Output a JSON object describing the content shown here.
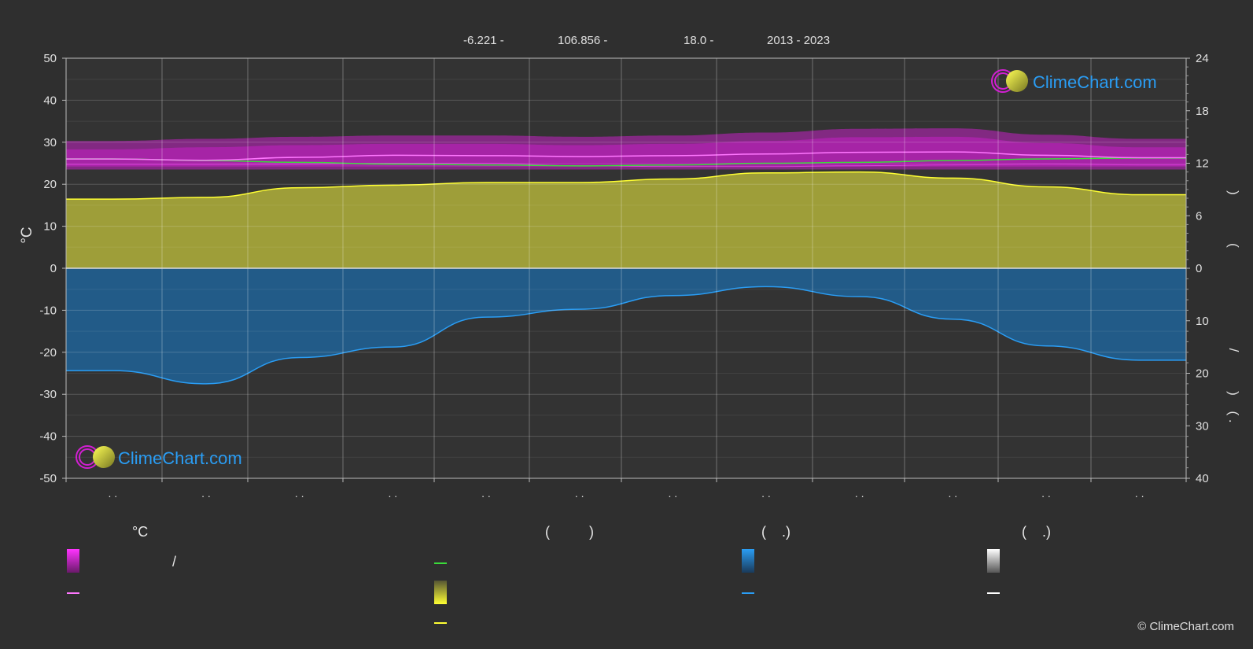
{
  "header": {
    "lat": "-6.221 -",
    "lon": "106.856 -",
    "elev": "18.0 -",
    "years": "2013 - 2023"
  },
  "brand": {
    "name": "ClimeChart.com",
    "copyright": "© ClimeChart.com",
    "color": "#2a9df4"
  },
  "legend": {
    "temp_header": "°C",
    "sun_header": "(          )",
    "rain_header": "(    .)",
    "snow_header": "(    .)",
    "slash": "/"
  },
  "colors": {
    "background": "#2f2f2f",
    "temp_band": "#d21fd2",
    "mean_temp": "#ff77ff",
    "daylight": "#3adb3a",
    "sunshine_fill": "#b6b63a",
    "sunshine_line": "#ffff33",
    "rain_fill": "#1e6aa6",
    "rain_line": "#2a9df4",
    "snow_line": "#ffffff"
  },
  "chart_data": {
    "type": "area",
    "months": 12,
    "y_left": {
      "label": "°C",
      "ticks": [
        50,
        40,
        30,
        20,
        10,
        0,
        -10,
        -20,
        -30,
        -40,
        -50
      ],
      "range": [
        -50,
        50
      ]
    },
    "y_right_top": {
      "ticks": [
        24,
        18,
        12,
        6,
        0
      ],
      "range": [
        0,
        24
      ]
    },
    "y_right_bottom": {
      "ticks": [
        0,
        10,
        20,
        30,
        40
      ],
      "range": [
        0,
        40
      ]
    },
    "month_tick_labels": [
      ". .",
      ". .",
      ". .",
      ". .",
      ". .",
      ". .",
      ". .",
      ". .",
      ". .",
      ". .",
      ". .",
      ". ."
    ],
    "right_axis_fragments": [
      ")",
      "(",
      "/",
      ")",
      "( ."
    ],
    "series": [
      {
        "key": "daily_max",
        "values": [
          30.3,
          30.8,
          31.3,
          31.6,
          31.6,
          31.3,
          31.6,
          32.3,
          33.2,
          33.3,
          31.8,
          30.8
        ]
      },
      {
        "key": "daily_min",
        "values": [
          24.7,
          24.7,
          24.8,
          25.0,
          25.0,
          24.4,
          24.2,
          24.2,
          24.4,
          24.6,
          24.8,
          24.6
        ]
      },
      {
        "key": "mean_temp",
        "values": [
          26.0,
          25.7,
          26.4,
          26.9,
          26.8,
          26.6,
          26.8,
          27.2,
          27.6,
          27.7,
          26.9,
          26.3
        ]
      },
      {
        "key": "daylight_hours",
        "values": [
          12.5,
          12.3,
          12.1,
          11.9,
          11.8,
          11.7,
          11.8,
          12.0,
          12.1,
          12.3,
          12.5,
          12.6
        ]
      },
      {
        "key": "sunshine_hours",
        "values": [
          7.9,
          8.1,
          9.2,
          9.5,
          9.8,
          9.8,
          10.2,
          10.9,
          11.0,
          10.3,
          9.3,
          8.4
        ]
      },
      {
        "key": "precipitation_mm",
        "values": [
          19.5,
          22.0,
          17.0,
          15.0,
          9.3,
          7.8,
          5.2,
          3.5,
          5.4,
          9.7,
          14.8,
          17.5
        ]
      }
    ]
  }
}
